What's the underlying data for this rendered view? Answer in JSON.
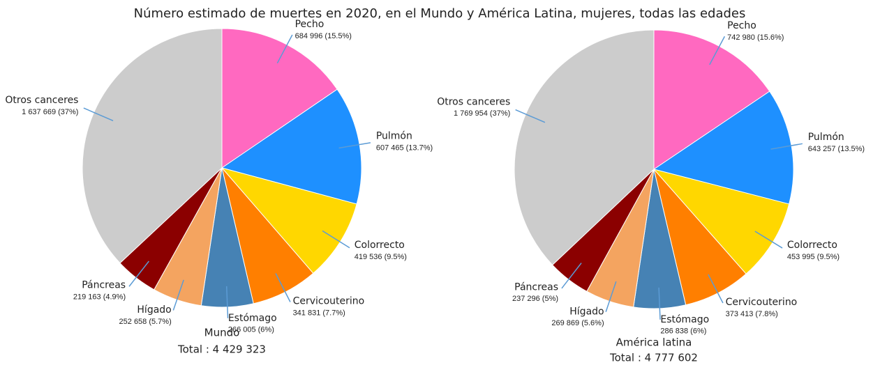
{
  "title": "Número estimado de muertes en 2020, en el Mundo y América Latina, mujeres, todas las edades",
  "chart_data": [
    {
      "type": "pie",
      "subtitle": "Mundo",
      "total": "Total : 4 429 323",
      "categories": [
        "Pecho",
        "Pulmón",
        "Colorrecto",
        "Cervicouterino",
        "Estómago",
        "Hígado",
        "Páncreas",
        "Otros canceres"
      ],
      "values": [
        684996,
        607465,
        419536,
        341831,
        266005,
        252658,
        219163,
        1637669
      ],
      "value_labels": [
        "684 996 (15.5%)",
        "607 465 (13.7%)",
        "419 536 (9.5%)",
        "341 831 (7.7%)",
        "266 005 (6%)",
        "252 658 (5.7%)",
        "219 163 (4.9%)",
        "1 637 669 (37%)"
      ],
      "colors": [
        "#ff69c0",
        "#1e90ff",
        "#ffd700",
        "#ff7f00",
        "#4682b4",
        "#f4a460",
        "#8b0000",
        "#cccccc"
      ]
    },
    {
      "type": "pie",
      "subtitle": "América latina",
      "total": "Total : 4 777 602",
      "categories": [
        "Pecho",
        "Pulmón",
        "Colorrecto",
        "Cervicouterino",
        "Estómago",
        "Hígado",
        "Páncreas",
        "Otros canceres"
      ],
      "values": [
        742980,
        643257,
        453995,
        373413,
        286838,
        269869,
        237296,
        1769954
      ],
      "value_labels": [
        "742 980 (15.6%)",
        "643 257 (13.5%)",
        "453 995 (9.5%)",
        "373 413 (7.8%)",
        "286 838 (6%)",
        "269 869 (5.6%)",
        "237 296 (5%)",
        "1 769 954 (37%)"
      ],
      "colors": [
        "#ff69c0",
        "#1e90ff",
        "#ffd700",
        "#ff7f00",
        "#4682b4",
        "#f4a460",
        "#8b0000",
        "#cccccc"
      ]
    }
  ]
}
